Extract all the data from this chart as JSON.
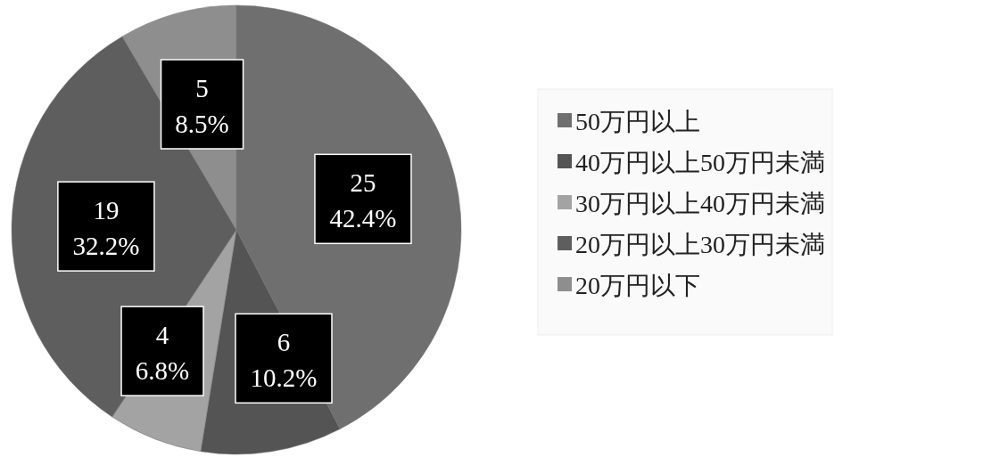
{
  "chart_data": {
    "type": "pie",
    "categories": [
      "50万円以上",
      "40万円以上50万円未満",
      "30万円以上40万円未満",
      "20万円以上30万円未満",
      "20万円以下"
    ],
    "values": [
      25,
      6,
      4,
      19,
      5
    ],
    "colors": [
      "#6f6f6f",
      "#545454",
      "#a3a3a3",
      "#5e5e5e",
      "#8e8e8e"
    ],
    "value_labels": [
      "25\n42.4%",
      "6\n10.2%",
      "4\n6.8%",
      "19\n32.2%",
      "5\n8.5%"
    ],
    "legend": "right"
  }
}
